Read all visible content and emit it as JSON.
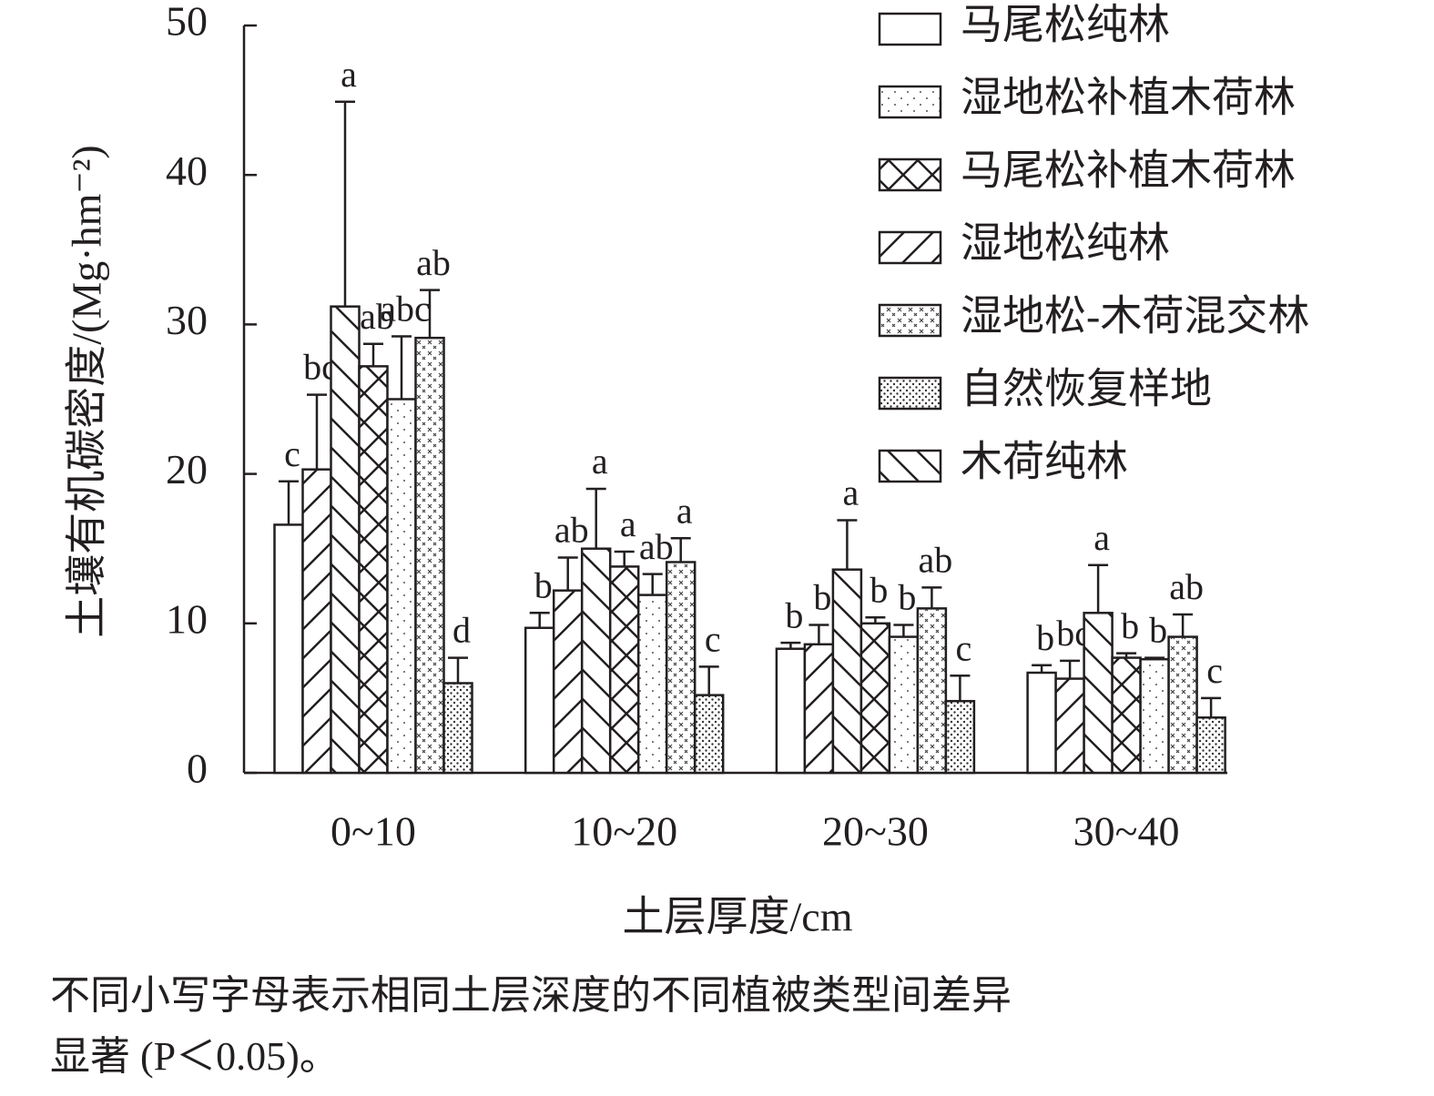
{
  "chart_data": {
    "type": "bar",
    "ylabel": "土壤有机碳密度/(Mg·hm⁻²)",
    "xlabel": "土层厚度/cm",
    "categories": [
      "0~10",
      "10~20",
      "20~30",
      "30~40"
    ],
    "ylim": [
      0,
      50
    ],
    "yticks": [
      0,
      10,
      20,
      30,
      40,
      50
    ],
    "series": [
      {
        "name": "马尾松纯林",
        "values": [
          16.6,
          9.7,
          8.3,
          6.7
        ],
        "errors": [
          2.9,
          1.0,
          0.4,
          0.5
        ],
        "letters": [
          "c",
          "b",
          "b",
          "b"
        ]
      },
      {
        "name": "湿地松纯林",
        "values": [
          20.3,
          12.2,
          8.6,
          6.3
        ],
        "errors": [
          5.0,
          2.2,
          1.3,
          1.2
        ],
        "letters": [
          "bc",
          "ab",
          "b",
          "bc"
        ]
      },
      {
        "name": "木荷纯林",
        "values": [
          31.2,
          15.0,
          13.6,
          10.7
        ],
        "errors": [
          13.7,
          4.0,
          3.3,
          3.2
        ],
        "letters": [
          "a",
          "a",
          "a",
          "a"
        ]
      },
      {
        "name": "马尾松补植木荷林",
        "values": [
          27.2,
          13.8,
          10.0,
          7.7
        ],
        "errors": [
          1.5,
          1.0,
          0.4,
          0.3
        ],
        "letters": [
          "ab",
          "a",
          "b",
          "b"
        ]
      },
      {
        "name": "湿地松补植木荷林",
        "values": [
          25.0,
          11.9,
          9.1,
          7.6
        ],
        "errors": [
          4.2,
          1.4,
          0.8,
          0.1
        ],
        "letters": [
          "abc",
          "ab",
          "b",
          "b"
        ]
      },
      {
        "name": "湿地松-木荷混交林",
        "values": [
          29.1,
          14.1,
          11.0,
          9.1
        ],
        "errors": [
          3.2,
          1.6,
          1.4,
          1.5
        ],
        "letters": [
          "ab",
          "a",
          "ab",
          "ab"
        ]
      },
      {
        "name": "自然恢复样地",
        "values": [
          6.0,
          5.2,
          4.8,
          3.7
        ],
        "errors": [
          1.7,
          1.9,
          1.7,
          1.3
        ],
        "letters": [
          "d",
          "c",
          "c",
          "c"
        ]
      }
    ],
    "note": [
      "不同小写字母表示相同土层深度的不同植被类型间差异",
      "显著 (P＜0.05)。"
    ]
  }
}
